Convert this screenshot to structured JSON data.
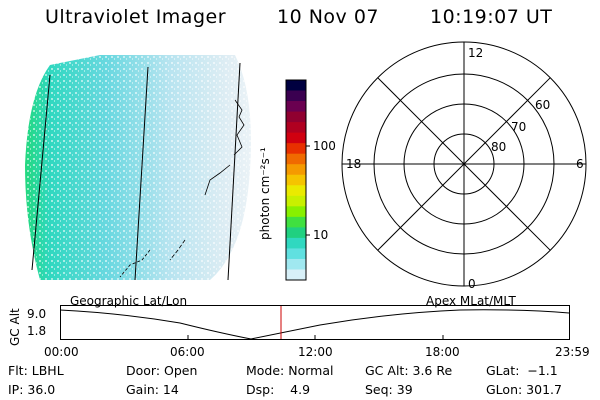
{
  "header": {
    "instrument": "Ultraviolet Imager",
    "date": "10 Nov 07",
    "time": "10:19:07 UT"
  },
  "colorbar": {
    "label": "photon cm⁻²s⁻¹",
    "ticks": [
      "100",
      "10"
    ],
    "colors": [
      "#000040",
      "#3a0050",
      "#6a0050",
      "#900030",
      "#b00020",
      "#d00010",
      "#e83000",
      "#f06a00",
      "#f59a00",
      "#f5c400",
      "#eaea00",
      "#c8f000",
      "#88f000",
      "#40e040",
      "#20d080",
      "#30d8c0",
      "#60e0e0",
      "#a0e8f0",
      "#d8f0f8"
    ]
  },
  "polar_grid": {
    "mlt_labels": {
      "top": "12",
      "bottom": "0",
      "left": "18",
      "right": "6"
    },
    "lat_labels": [
      "60",
      "70",
      "80"
    ]
  },
  "timeline": {
    "left_title": "Geographic Lat/Lon",
    "right_title": "Apex MLat/MLT",
    "y_axis_label": "GC Alt",
    "y_ticks": [
      "9.0",
      "1.8"
    ],
    "x_ticks": [
      "00:00",
      "06:00",
      "12:00",
      "18:00",
      "23:59"
    ]
  },
  "status": {
    "filter": "Flt: LBHL",
    "ip": "IP: 36.0",
    "door": "Door: Open",
    "gain": "Gain: 14",
    "mode": "Mode: Normal",
    "dsp": "Dsp:    4.9",
    "gc_alt": "GC Alt: 3.6 Re",
    "seq": "Seq: 39",
    "glat": "GLat:  −1.1",
    "glon": "GLon: 301.7"
  }
}
